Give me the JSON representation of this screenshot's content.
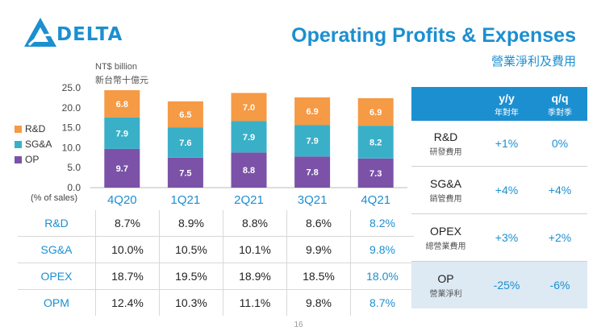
{
  "logo": {
    "text": "DELTA"
  },
  "title": "Operating Profits & Expenses",
  "subtitle": "營業淨利及費用",
  "unit": {
    "en": "NT$ billion",
    "zh": "新台幣十億元"
  },
  "colors": {
    "rd": "#f59a45",
    "sga": "#3ab0c8",
    "op": "#7b52a8",
    "accent": "#1c8fd0"
  },
  "legend": [
    {
      "label": "R&D",
      "color": "#f59a45"
    },
    {
      "label": "SG&A",
      "color": "#3ab0c8"
    },
    {
      "label": "OP",
      "color": "#7b52a8"
    }
  ],
  "chart_data": {
    "type": "bar",
    "stacked": true,
    "categories": [
      "4Q20",
      "1Q21",
      "2Q21",
      "3Q21",
      "4Q21"
    ],
    "series": [
      {
        "name": "OP",
        "values": [
          9.7,
          7.5,
          8.8,
          7.8,
          7.3
        ]
      },
      {
        "name": "SG&A",
        "values": [
          7.9,
          7.6,
          7.9,
          7.9,
          8.2
        ]
      },
      {
        "name": "R&D",
        "values": [
          6.8,
          6.5,
          7.0,
          6.9,
          6.9
        ]
      }
    ],
    "ylim": [
      0,
      25
    ],
    "yticks": [
      "0.0",
      "5.0",
      "10.0",
      "15.0",
      "20.0",
      "25.0"
    ],
    "ylabel": "NT$ billion"
  },
  "pct_label": "(% of sales)",
  "table": {
    "rows": [
      {
        "name": "R&D",
        "values": [
          "8.7%",
          "8.9%",
          "8.8%",
          "8.6%",
          "8.2%"
        ]
      },
      {
        "name": "SG&A",
        "values": [
          "10.0%",
          "10.5%",
          "10.1%",
          "9.9%",
          "9.8%"
        ]
      },
      {
        "name": "OPEX",
        "values": [
          "18.7%",
          "19.5%",
          "18.9%",
          "18.5%",
          "18.0%"
        ]
      },
      {
        "name": "OPM",
        "values": [
          "12.4%",
          "10.3%",
          "11.1%",
          "9.8%",
          "8.7%"
        ]
      }
    ]
  },
  "right_panel": {
    "headers": [
      {
        "label": "y/y",
        "sub": "年對年"
      },
      {
        "label": "q/q",
        "sub": "季對季"
      }
    ],
    "rows": [
      {
        "en": "R&D",
        "zh": "研發費用",
        "yy": "+1%",
        "qq": "0%"
      },
      {
        "en": "SG&A",
        "zh": "銷管費用",
        "yy": "+4%",
        "qq": "+4%"
      },
      {
        "en": "OPEX",
        "zh": "總營業費用",
        "yy": "+3%",
        "qq": "+2%"
      },
      {
        "en": "OP",
        "zh": "營業淨利",
        "yy": "-25%",
        "qq": "-6%"
      }
    ]
  },
  "page_number": "16"
}
